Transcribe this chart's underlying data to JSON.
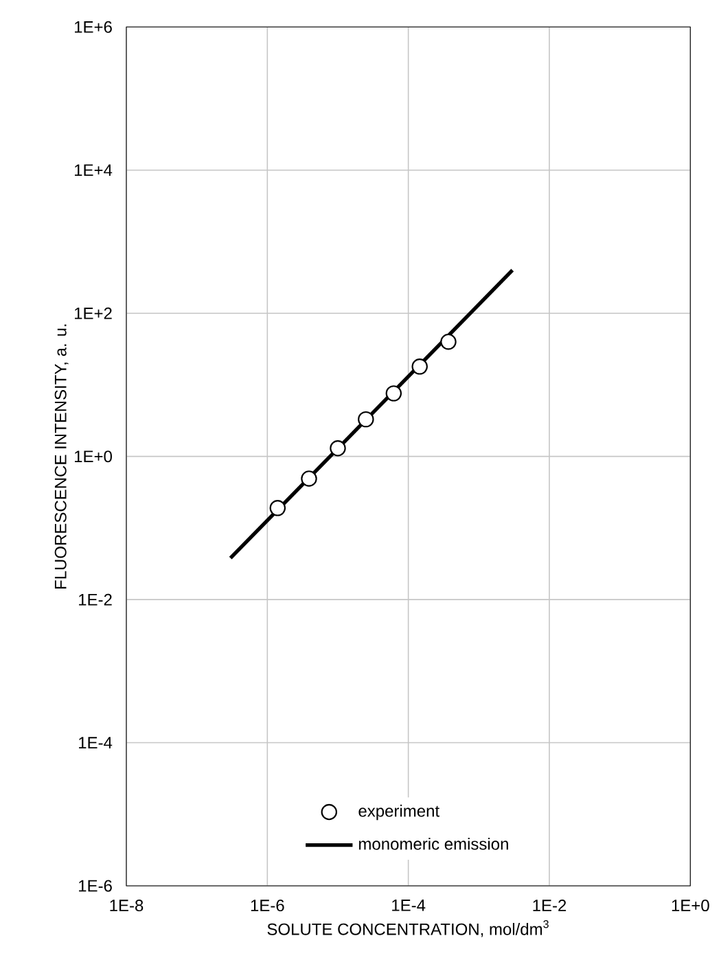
{
  "chart_data": {
    "type": "line",
    "xlabel": "SOLUTE CONCENTRATION, mol/dm$^{3}$",
    "ylabel": "FLUORESCENCE INTENSITY, a. u.",
    "log": "xy",
    "grid": true,
    "legend": "bottom",
    "xlim": [
      1e-08,
      1
    ],
    "ylim": [
      1e-06,
      1000000.0
    ],
    "xticks": [
      {
        "value": 1e-08,
        "label": "1E-8"
      },
      {
        "value": 1e-06,
        "label": "1E-6"
      },
      {
        "value": 0.0001,
        "label": "1E-4"
      },
      {
        "value": 0.01,
        "label": "1E-2"
      },
      {
        "value": 1,
        "label": "1E+0"
      }
    ],
    "yticks": [
      {
        "value": 1e-06,
        "label": "1E-6"
      },
      {
        "value": 0.0001,
        "label": "1E-4"
      },
      {
        "value": 0.01,
        "label": "1E-2"
      },
      {
        "value": 1,
        "label": "1E+0"
      },
      {
        "value": 100,
        "label": "1E+2"
      },
      {
        "value": 10000,
        "label": "1E+4"
      },
      {
        "value": 1000000,
        "label": "1E+6"
      }
    ],
    "series": [
      {
        "name": "experiment",
        "type": "scatter",
        "marker": "circle",
        "color": "#000000",
        "x": [
          1.4e-06,
          3.9e-06,
          1e-05,
          2.5e-05,
          6.2e-05,
          0.000145,
          0.00037
        ],
        "values": [
          0.19,
          0.49,
          1.3,
          3.3,
          7.6,
          18,
          40
        ]
      },
      {
        "name": "monomeric emission",
        "marker": "none",
        "line_style": "solid",
        "color": "#000000",
        "x": [
          3e-07,
          0.003
        ],
        "values": [
          0.038,
          400
        ]
      }
    ]
  }
}
